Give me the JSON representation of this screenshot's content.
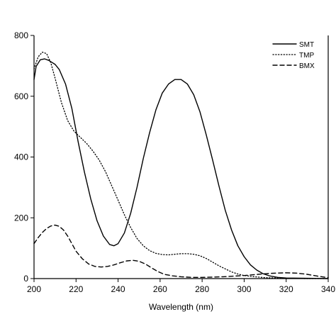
{
  "chart_data": {
    "type": "line",
    "xlabel": "Wavelength (nm)",
    "ylabel": "",
    "xlim": [
      200,
      340
    ],
    "ylim": [
      0,
      800
    ],
    "x_ticks": [
      200,
      220,
      240,
      260,
      280,
      300,
      320,
      340
    ],
    "y_ticks": [
      0,
      200,
      400,
      600,
      800
    ],
    "grid": false,
    "legend_position": "top-right",
    "series": [
      {
        "name": "SMT",
        "style": "solid",
        "color": "#000000",
        "points": [
          [
            200,
            655
          ],
          [
            201,
            698
          ],
          [
            203,
            720
          ],
          [
            205,
            723
          ],
          [
            207,
            718
          ],
          [
            210,
            705
          ],
          [
            212,
            688
          ],
          [
            215,
            640
          ],
          [
            218,
            560
          ],
          [
            221,
            450
          ],
          [
            224,
            350
          ],
          [
            227,
            262
          ],
          [
            230,
            190
          ],
          [
            233,
            140
          ],
          [
            236,
            112
          ],
          [
            238,
            108
          ],
          [
            240,
            115
          ],
          [
            243,
            150
          ],
          [
            246,
            215
          ],
          [
            249,
            300
          ],
          [
            252,
            395
          ],
          [
            255,
            480
          ],
          [
            258,
            555
          ],
          [
            261,
            610
          ],
          [
            264,
            640
          ],
          [
            267,
            655
          ],
          [
            270,
            655
          ],
          [
            273,
            640
          ],
          [
            276,
            605
          ],
          [
            279,
            548
          ],
          [
            282,
            472
          ],
          [
            285,
            390
          ],
          [
            288,
            305
          ],
          [
            291,
            225
          ],
          [
            294,
            160
          ],
          [
            297,
            108
          ],
          [
            300,
            72
          ],
          [
            303,
            45
          ],
          [
            306,
            28
          ],
          [
            309,
            16
          ],
          [
            312,
            9
          ],
          [
            316,
            4
          ],
          [
            320,
            2
          ],
          [
            330,
            1
          ],
          [
            340,
            0
          ]
        ]
      },
      {
        "name": "TMP",
        "style": "dotted",
        "color": "#000000",
        "points": [
          [
            200,
            690
          ],
          [
            202,
            730
          ],
          [
            204,
            745
          ],
          [
            206,
            740
          ],
          [
            208,
            710
          ],
          [
            210,
            660
          ],
          [
            213,
            580
          ],
          [
            216,
            520
          ],
          [
            219,
            485
          ],
          [
            222,
            465
          ],
          [
            225,
            445
          ],
          [
            228,
            420
          ],
          [
            231,
            390
          ],
          [
            234,
            352
          ],
          [
            237,
            305
          ],
          [
            240,
            258
          ],
          [
            243,
            210
          ],
          [
            246,
            168
          ],
          [
            249,
            132
          ],
          [
            252,
            108
          ],
          [
            255,
            92
          ],
          [
            258,
            83
          ],
          [
            261,
            79
          ],
          [
            264,
            78
          ],
          [
            267,
            80
          ],
          [
            270,
            82
          ],
          [
            273,
            82
          ],
          [
            276,
            80
          ],
          [
            279,
            75
          ],
          [
            282,
            66
          ],
          [
            285,
            54
          ],
          [
            288,
            42
          ],
          [
            291,
            32
          ],
          [
            294,
            22
          ],
          [
            297,
            15
          ],
          [
            300,
            10
          ],
          [
            305,
            6
          ],
          [
            310,
            3
          ],
          [
            320,
            1
          ],
          [
            330,
            0
          ],
          [
            340,
            0
          ]
        ]
      },
      {
        "name": "BMX",
        "style": "dashed",
        "color": "#000000",
        "points": [
          [
            200,
            115
          ],
          [
            202,
            135
          ],
          [
            204,
            152
          ],
          [
            206,
            165
          ],
          [
            208,
            173
          ],
          [
            210,
            176
          ],
          [
            212,
            172
          ],
          [
            214,
            160
          ],
          [
            216,
            140
          ],
          [
            218,
            115
          ],
          [
            220,
            90
          ],
          [
            223,
            65
          ],
          [
            226,
            48
          ],
          [
            229,
            40
          ],
          [
            232,
            38
          ],
          [
            235,
            40
          ],
          [
            238,
            45
          ],
          [
            241,
            52
          ],
          [
            244,
            58
          ],
          [
            247,
            60
          ],
          [
            250,
            57
          ],
          [
            253,
            48
          ],
          [
            256,
            35
          ],
          [
            259,
            23
          ],
          [
            262,
            14
          ],
          [
            266,
            9
          ],
          [
            270,
            6
          ],
          [
            275,
            4
          ],
          [
            280,
            4
          ],
          [
            285,
            5
          ],
          [
            290,
            6
          ],
          [
            295,
            8
          ],
          [
            300,
            10
          ],
          [
            305,
            13
          ],
          [
            310,
            16
          ],
          [
            315,
            18
          ],
          [
            320,
            19
          ],
          [
            325,
            18
          ],
          [
            330,
            14
          ],
          [
            335,
            8
          ],
          [
            340,
            3
          ]
        ]
      }
    ]
  }
}
